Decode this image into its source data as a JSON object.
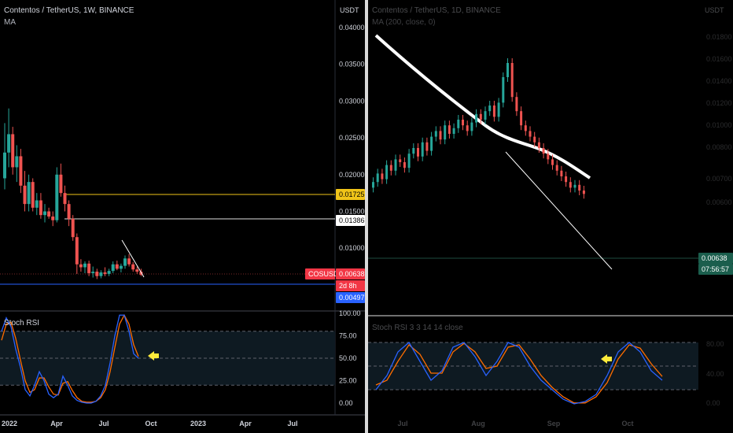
{
  "left": {
    "title": "Contentos / TetherUS, 1W, BINANCE",
    "indicator": "MA",
    "unit": "USDT",
    "stoch_label": "Stoch RSI",
    "price_ticks": [
      "0.04000",
      "0.03500",
      "0.03000",
      "0.02500",
      "0.02000",
      "0.01500",
      "0.01000"
    ],
    "stoch_ticks": [
      "100.00",
      "75.00",
      "50.00",
      "25.00",
      "0.00"
    ],
    "x_ticks": [
      "2022",
      "Apr",
      "Jul",
      "Oct",
      "2023",
      "Apr",
      "Jul"
    ],
    "badges": {
      "yellow": "0.01725",
      "white": "0.01386",
      "symbol": "COSUSDT",
      "price": "0.00638",
      "countdown": "2d 8h",
      "blue": "0.00497"
    },
    "colors": {
      "up": "#26a69a",
      "down": "#ef5350",
      "yellow_line": "#f0c419",
      "blue_line": "#2962ff",
      "k_line": "#2962ff",
      "d_line": "#ff6d00",
      "arrow": "#ffeb3b"
    }
  },
  "right": {
    "title": "Contentos / TetherUS, 1D, BINANCE",
    "indicator": "MA (200, close, 0)",
    "unit": "USDT",
    "stoch_label": "Stoch RSI 3 3 14 14 close",
    "price_ticks": [
      "0.01800",
      "0.01600",
      "0.01400",
      "0.01200",
      "0.01000",
      "0.00800",
      "0.00700",
      "0.00600"
    ],
    "stoch_ticks": [
      "80.00",
      "40.00",
      "0.00"
    ],
    "x_ticks": [
      "Jul",
      "Aug",
      "Sep",
      "Oct"
    ],
    "badges": {
      "price": "0.00638",
      "countdown": "07:56:57"
    }
  }
}
